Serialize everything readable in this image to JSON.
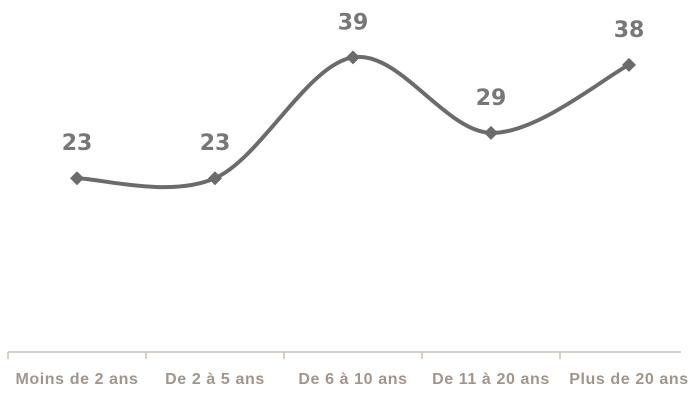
{
  "chart_data": {
    "type": "line",
    "categories": [
      "Moins de 2 ans",
      "De 2 à 5 ans",
      "De 6 à 10 ans",
      "De 11 à 20 ans",
      "Plus de 20 ans"
    ],
    "values": [
      23,
      23,
      39,
      29,
      38
    ],
    "color": "#6b6b6b",
    "ylim": [
      0,
      45
    ]
  }
}
